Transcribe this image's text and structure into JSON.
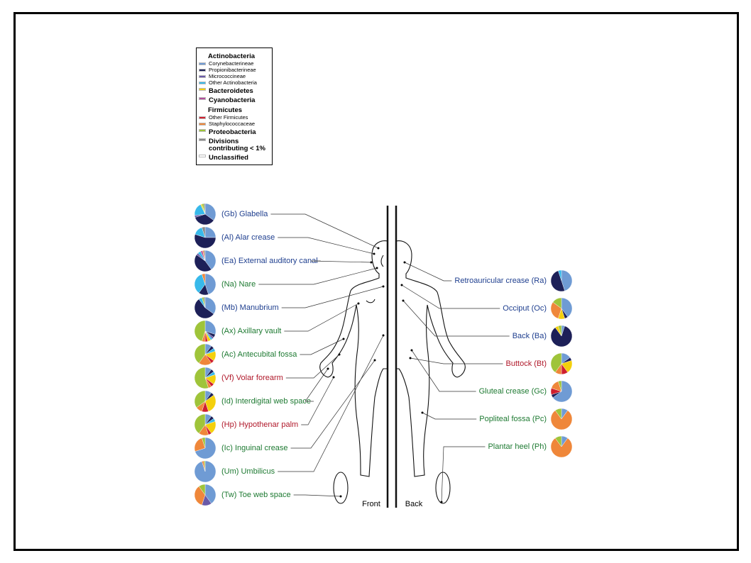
{
  "legend": [
    {
      "name": "Actinobacteria",
      "members": [
        {
          "name": "Corynebacterineae",
          "color": "#6f9bd4"
        },
        {
          "name": "Propionibacterineae",
          "color": "#1d2058"
        },
        {
          "name": "Micrococcineae",
          "color": "#6a5aa8"
        },
        {
          "name": "Other Actinobacteria",
          "color": "#38b9ea"
        }
      ]
    },
    {
      "members": [
        {
          "name": "Bacteroidetes",
          "color": "#f4d00c"
        }
      ]
    },
    {
      "members": [
        {
          "name": "Cyanobacteria",
          "color": "#b24d9c"
        }
      ]
    },
    {
      "name": "Firmicutes",
      "members": [
        {
          "name": "Other Firmicutes",
          "color": "#cf1f2e"
        },
        {
          "name": "Staphylococcaceae",
          "color": "#ef873a"
        }
      ]
    },
    {
      "members": [
        {
          "name": "Proteobacteria",
          "color": "#9fc43a"
        }
      ]
    },
    {
      "members": [
        {
          "name": "Divisions contributing < 1%",
          "color": "#8a8a8a"
        }
      ]
    },
    {
      "members": [
        {
          "name": "Unclassified",
          "color": "#ffffff"
        }
      ]
    }
  ],
  "front_label": "Front",
  "back_label": "Back",
  "front_sites": [
    {
      "label": "(Gb) Glabella",
      "color": "#1f3f8f",
      "values": [
        35,
        35,
        3,
        20,
        2,
        0,
        0,
        0,
        3,
        2,
        0
      ]
    },
    {
      "label": "(Al) Alar crease",
      "color": "#1f3f8f",
      "values": [
        25,
        55,
        0,
        15,
        0,
        0,
        0,
        0,
        0,
        5,
        0
      ]
    },
    {
      "label": "(Ea) External auditory canal",
      "color": "#1f3f8f",
      "values": [
        40,
        45,
        3,
        5,
        0,
        3,
        0,
        2,
        0,
        2,
        0
      ]
    },
    {
      "label": "(Na) Nare",
      "color": "#1e7a32",
      "values": [
        45,
        15,
        0,
        35,
        0,
        0,
        0,
        5,
        0,
        0,
        0
      ]
    },
    {
      "label": "(Mb) Manubrium",
      "color": "#1f3f8f",
      "values": [
        35,
        55,
        0,
        5,
        0,
        0,
        0,
        0,
        3,
        2,
        0
      ]
    },
    {
      "label": "(Ax) Axillary vault",
      "color": "#1e7a32",
      "values": [
        30,
        5,
        3,
        3,
        5,
        0,
        4,
        5,
        45,
        0,
        0
      ]
    },
    {
      "label": "(Ac) Antecubital fossa",
      "color": "#1e7a32",
      "values": [
        10,
        5,
        0,
        5,
        15,
        0,
        5,
        20,
        40,
        0,
        0
      ]
    },
    {
      "label": "(Vf) Volar forearm",
      "color": "#b0182a",
      "values": [
        10,
        5,
        0,
        5,
        15,
        0,
        5,
        5,
        55,
        0,
        0
      ]
    },
    {
      "label": "(Id) Interdigital web space",
      "color": "#1e7a32",
      "values": [
        10,
        5,
        0,
        0,
        30,
        0,
        10,
        10,
        35,
        0,
        0
      ]
    },
    {
      "label": "(Hp) Hypothenar palm",
      "color": "#b0182a",
      "values": [
        10,
        5,
        0,
        5,
        20,
        0,
        5,
        15,
        40,
        0,
        0
      ]
    },
    {
      "label": "(Ic) Inguinal crease",
      "color": "#1e7a32",
      "values": [
        70,
        0,
        0,
        0,
        0,
        0,
        0,
        25,
        5,
        0,
        0
      ]
    },
    {
      "label": "(Um) Umbilicus",
      "color": "#1e7a32",
      "values": [
        95,
        0,
        0,
        0,
        0,
        0,
        0,
        3,
        2,
        0,
        0
      ]
    },
    {
      "label": "(Tw) Toe web space",
      "color": "#1e7a32",
      "values": [
        40,
        0,
        15,
        0,
        0,
        0,
        0,
        35,
        10,
        0,
        0
      ]
    }
  ],
  "back_sites": [
    {
      "label": "Retroauricular crease (Ra)",
      "color": "#1f3f8f",
      "values": [
        45,
        50,
        0,
        5,
        0,
        0,
        0,
        0,
        0,
        0,
        0
      ]
    },
    {
      "label": "Occiput (Oc)",
      "color": "#1f3f8f",
      "values": [
        40,
        5,
        0,
        0,
        10,
        0,
        0,
        30,
        15,
        0,
        0
      ]
    },
    {
      "label": "Back (Ba)",
      "color": "#1f3f8f",
      "values": [
        5,
        85,
        0,
        0,
        5,
        0,
        0,
        0,
        5,
        0,
        0
      ]
    },
    {
      "label": "Buttock (Bt)",
      "color": "#b0182a",
      "values": [
        15,
        5,
        0,
        0,
        20,
        0,
        10,
        10,
        40,
        0,
        0
      ]
    },
    {
      "label": "Gluteal crease (Gc)",
      "color": "#1e7a32",
      "values": [
        65,
        5,
        0,
        0,
        0,
        0,
        10,
        15,
        5,
        0,
        0
      ]
    },
    {
      "label": "Popliteal fossa (Pc)",
      "color": "#1e7a32",
      "values": [
        10,
        0,
        0,
        0,
        0,
        0,
        0,
        80,
        10,
        0,
        0
      ]
    },
    {
      "label": "Plantar heel (Ph)",
      "color": "#1e7a32",
      "values": [
        10,
        0,
        0,
        0,
        0,
        0,
        0,
        80,
        10,
        0,
        0
      ]
    }
  ]
}
